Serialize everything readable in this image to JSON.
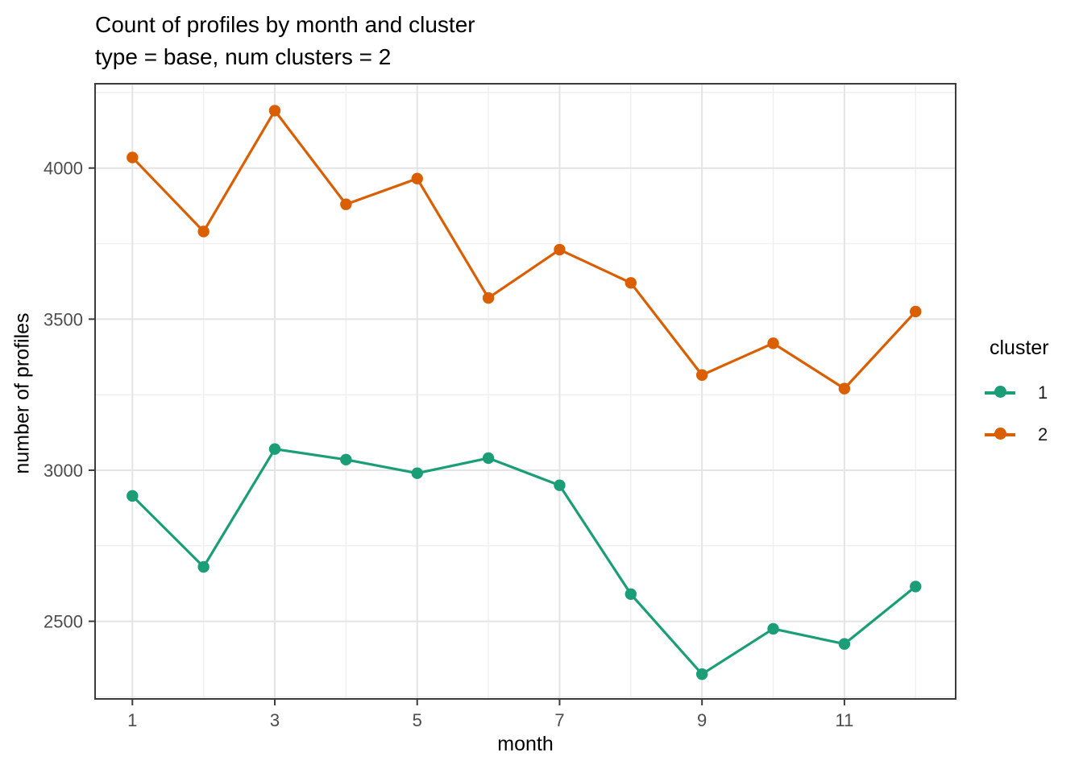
{
  "title": "Count of profiles by month and cluster",
  "subtitle": "type = base, num clusters = 2",
  "axes": {
    "xlabel": "month",
    "ylabel": "number of profiles"
  },
  "legend": {
    "title": "cluster",
    "entries": [
      {
        "label": "1",
        "color": "#1B9E77"
      },
      {
        "label": "2",
        "color": "#D95F02"
      }
    ]
  },
  "colors": {
    "series1": "#1B9E77",
    "series2": "#D95F02",
    "panel_border": "#3c3c3c",
    "grid_major": "#e4e4e4",
    "grid_minor": "#efefef",
    "tick_text": "#4d4d4d"
  },
  "chart_data": {
    "type": "line",
    "title": "Count of profiles by month and cluster",
    "subtitle": "type = base, num clusters = 2",
    "xlabel": "month",
    "ylabel": "number of profiles",
    "x": [
      1,
      2,
      3,
      4,
      5,
      6,
      7,
      8,
      9,
      10,
      11,
      12
    ],
    "series": [
      {
        "name": "1",
        "color": "#1B9E77",
        "values": [
          2915,
          2680,
          3070,
          3035,
          2990,
          3040,
          2950,
          2590,
          2325,
          2475,
          2425,
          2615
        ]
      },
      {
        "name": "2",
        "color": "#D95F02",
        "values": [
          4035,
          3790,
          4190,
          3880,
          3965,
          3570,
          3730,
          3620,
          3315,
          3420,
          3270,
          3525
        ]
      }
    ],
    "x_ticks": [
      1,
      3,
      5,
      7,
      9,
      11
    ],
    "x_minor": [
      2,
      4,
      6,
      8,
      10,
      12
    ],
    "y_ticks": [
      2500,
      3000,
      3500,
      4000
    ],
    "y_minor": [
      2250,
      2750,
      3250,
      3750,
      4250
    ],
    "xlim": [
      0.45,
      12.55
    ],
    "ylim": [
      2240,
      4285
    ],
    "grid": true,
    "legend_position": "right",
    "legend_title": "cluster"
  }
}
